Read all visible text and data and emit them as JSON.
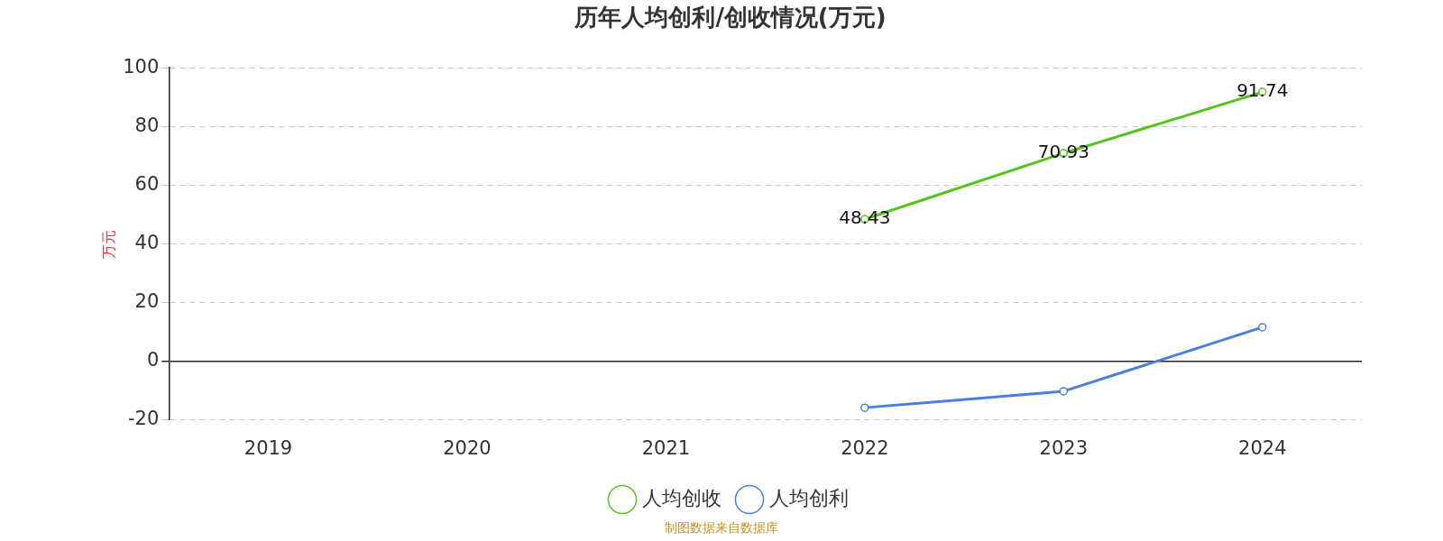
{
  "chart_data": {
    "type": "line",
    "title": "历年人均创利/创收情况(万元)",
    "ylabel": "万元",
    "categories": [
      "2019",
      "2020",
      "2021",
      "2022",
      "2023",
      "2024"
    ],
    "series": [
      {
        "name": "人均创收",
        "color": "#52c41a",
        "values": [
          null,
          null,
          null,
          48.43,
          70.93,
          91.74
        ],
        "value_labels": [
          null,
          null,
          null,
          "48.43",
          "70.93",
          "91.74"
        ]
      },
      {
        "name": "人均创利",
        "color": "#4a7fe0",
        "values": [
          null,
          null,
          null,
          -15.8,
          -10.2,
          11.6
        ]
      }
    ],
    "ylim": [
      -20,
      100
    ],
    "yticks": [
      -20,
      0,
      20,
      40,
      60,
      80,
      100
    ],
    "grid": "y",
    "legend": "bottom",
    "marker": "circle",
    "line_style": "solid",
    "annotations": [
      "制图数据来自数据库"
    ]
  }
}
